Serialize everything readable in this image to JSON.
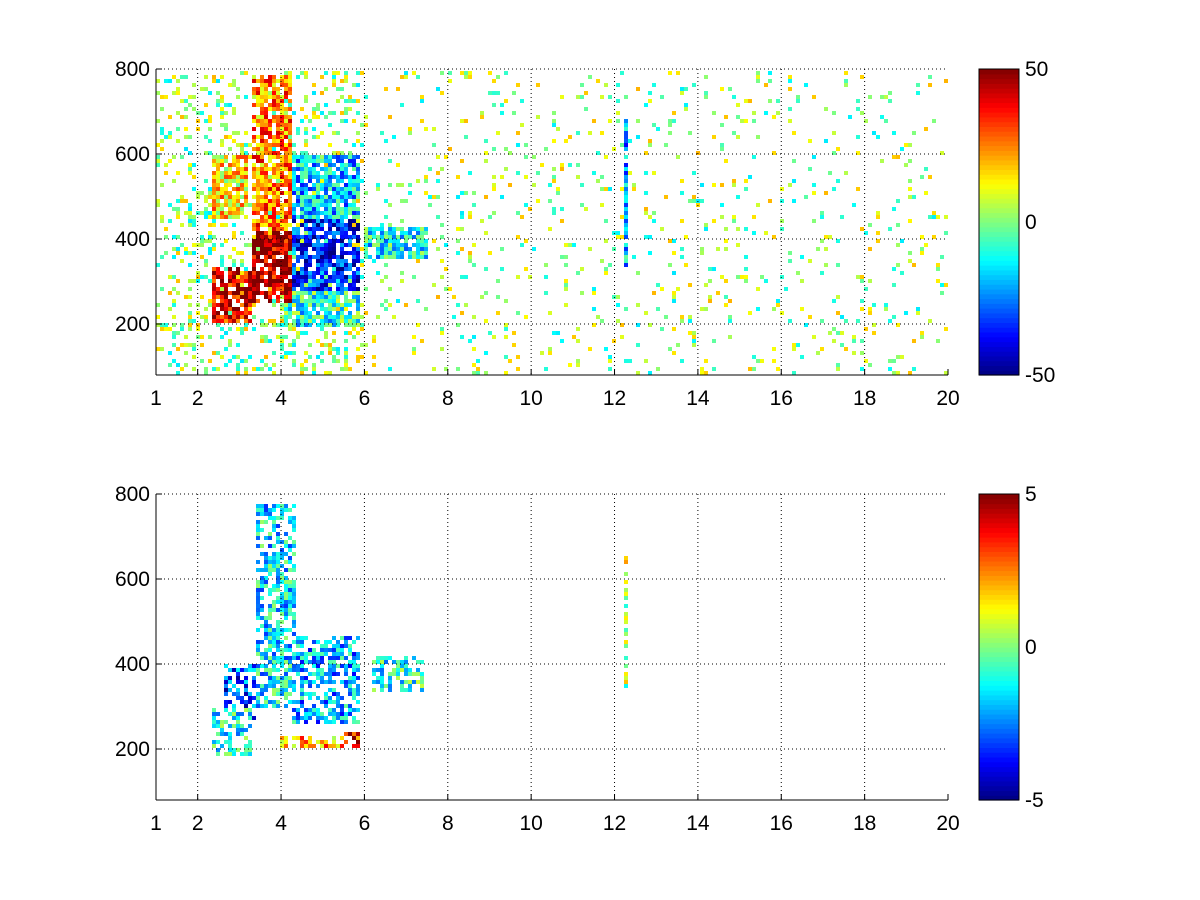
{
  "chart_data": [
    {
      "type": "heatmap",
      "title": "",
      "xlabel": "",
      "ylabel": "",
      "xlim": [
        1,
        20
      ],
      "ylim": [
        80,
        800
      ],
      "x_ticks": [
        1,
        2,
        4,
        6,
        8,
        10,
        12,
        14,
        16,
        18,
        20
      ],
      "x_tick_labels": [
        "1",
        "2",
        "4",
        "6",
        "8",
        "10",
        "12",
        "14",
        "16",
        "18",
        "20"
      ],
      "y_ticks": [
        200,
        400,
        600,
        800
      ],
      "y_tick_labels": [
        "200",
        "400",
        "600",
        "800"
      ],
      "grid": true,
      "colormap": "jet",
      "colorbar": {
        "range": [
          -50,
          50
        ],
        "ticks": [
          -50,
          0,
          50
        ],
        "tick_labels": [
          "-50",
          "0",
          "50"
        ],
        "placement": "right"
      },
      "features": [
        {
          "x": [
            2.3,
            3.3
          ],
          "y": [
            200,
            330
          ],
          "value": 40
        },
        {
          "x": [
            2.3,
            3.2
          ],
          "y": [
            450,
            600
          ],
          "value": 15
        },
        {
          "x": [
            3.3,
            4.3
          ],
          "y": [
            420,
            790
          ],
          "value": 25
        },
        {
          "x": [
            3.3,
            4.3
          ],
          "y": [
            250,
            420
          ],
          "value": 45
        },
        {
          "x": [
            4.2,
            5.9
          ],
          "y": [
            280,
            450
          ],
          "value": -35
        },
        {
          "x": [
            4.2,
            5.9
          ],
          "y": [
            450,
            600
          ],
          "value": -18
        },
        {
          "x": [
            4.0,
            5.9
          ],
          "y": [
            190,
            280
          ],
          "value": -10
        },
        {
          "x": [
            6.0,
            7.5
          ],
          "y": [
            350,
            430
          ],
          "value": -12
        },
        {
          "x": [
            12.2,
            12.3
          ],
          "y": [
            335,
            680
          ],
          "value": -20
        }
      ],
      "noise_value_range": [
        -15,
        20
      ]
    },
    {
      "type": "heatmap",
      "title": "",
      "xlabel": "",
      "ylabel": "",
      "xlim": [
        1,
        20
      ],
      "ylim": [
        80,
        800
      ],
      "x_ticks": [
        1,
        2,
        4,
        6,
        8,
        10,
        12,
        14,
        16,
        18,
        20
      ],
      "x_tick_labels": [
        "1",
        "2",
        "4",
        "6",
        "8",
        "10",
        "12",
        "14",
        "16",
        "18",
        "20"
      ],
      "y_ticks": [
        200,
        400,
        600,
        800
      ],
      "y_tick_labels": [
        "200",
        "400",
        "600",
        "800"
      ],
      "grid": true,
      "colormap": "jet",
      "colorbar": {
        "range": [
          -5,
          5
        ],
        "ticks": [
          -5,
          0,
          5
        ],
        "tick_labels": [
          "-5",
          "0",
          "5"
        ],
        "placement": "right"
      },
      "features": [
        {
          "x": [
            2.3,
            3.3
          ],
          "y": [
            180,
            300
          ],
          "value": -1
        },
        {
          "x": [
            2.6,
            3.4
          ],
          "y": [
            250,
            400
          ],
          "value": -3
        },
        {
          "x": [
            3.4,
            4.4
          ],
          "y": [
            300,
            780
          ],
          "value": -1.5
        },
        {
          "x": [
            4.3,
            5.9
          ],
          "y": [
            260,
            470
          ],
          "value": -2
        },
        {
          "x": [
            4.0,
            5.6
          ],
          "y": [
            200,
            230
          ],
          "value": 2
        },
        {
          "x": [
            5.3,
            5.9
          ],
          "y": [
            200,
            240
          ],
          "value": 3.5
        },
        {
          "x": [
            6.2,
            7.4
          ],
          "y": [
            330,
            420
          ],
          "value": -1
        },
        {
          "x": [
            12.2,
            12.3
          ],
          "y": [
            335,
            660
          ],
          "value": 0.5
        }
      ],
      "noise_value_range": [
        -4,
        4
      ]
    }
  ]
}
